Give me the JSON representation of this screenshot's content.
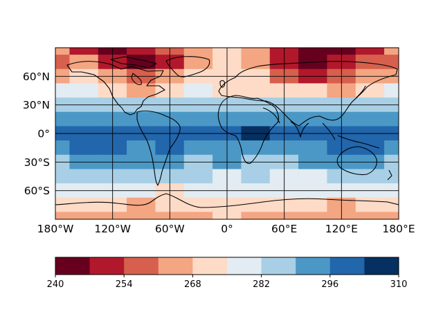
{
  "chart_data": {
    "type": "heatmap",
    "title": "",
    "projection": "PlateCarree",
    "coastlines": true,
    "grid": true,
    "xlim": [
      -180,
      180
    ],
    "ylim": [
      -90,
      90
    ],
    "xticks": [
      {
        "value": -180,
        "label": "180°W"
      },
      {
        "value": -120,
        "label": "120°W"
      },
      {
        "value": -60,
        "label": "60°W"
      },
      {
        "value": 0,
        "label": "0°"
      },
      {
        "value": 60,
        "label": "60°E"
      },
      {
        "value": 120,
        "label": "120°E"
      },
      {
        "value": 180,
        "label": "180°E"
      }
    ],
    "yticks": [
      {
        "value": 60,
        "label": "60°N"
      },
      {
        "value": 30,
        "label": "30°N"
      },
      {
        "value": 0,
        "label": "0°"
      },
      {
        "value": -30,
        "label": "30°S"
      },
      {
        "value": -60,
        "label": "60°S"
      }
    ],
    "colorbar": {
      "orientation": "horizontal",
      "levels": [
        240,
        247,
        254,
        261,
        268,
        275,
        282,
        289,
        296,
        303,
        310
      ],
      "tick_values": [
        240,
        254,
        268,
        282,
        296,
        310
      ],
      "tick_labels": [
        "240",
        "254",
        "268",
        "282",
        "296",
        "310"
      ],
      "colors": [
        "#67001f",
        "#b2182b",
        "#d6604d",
        "#f4a582",
        "#fddbc7",
        "#e2ecf2",
        "#a8cfe5",
        "#4b98c6",
        "#2266ac",
        "#053061"
      ]
    },
    "grid_lons": [
      -180,
      -150,
      -120,
      -90,
      -60,
      -30,
      0,
      30,
      60,
      90,
      120,
      150,
      180
    ],
    "grid_lats": [
      90,
      75,
      60,
      45,
      30,
      15,
      0,
      -15,
      -30,
      -45,
      -60,
      -75,
      -90
    ],
    "values": [
      [
        262,
        250,
        243,
        248,
        258,
        264,
        268,
        265,
        252,
        242,
        243,
        248,
        262
      ],
      [
        256,
        262,
        250,
        245,
        252,
        262,
        270,
        262,
        248,
        243,
        247,
        255,
        256
      ],
      [
        264,
        268,
        262,
        256,
        264,
        268,
        270,
        268,
        260,
        253,
        256,
        262,
        264
      ],
      [
        276,
        276,
        272,
        266,
        272,
        276,
        273,
        274,
        270,
        268,
        266,
        270,
        276
      ],
      [
        284,
        283,
        284,
        284,
        283,
        282,
        285,
        284,
        282,
        286,
        283,
        284,
        284
      ],
      [
        292,
        293,
        292,
        292,
        292,
        292,
        294,
        294,
        293,
        294,
        294,
        293,
        292
      ],
      [
        296,
        297,
        296,
        296,
        297,
        296,
        297,
        303,
        297,
        297,
        298,
        297,
        296
      ],
      [
        295,
        297,
        296,
        295,
        297,
        294,
        293,
        295,
        294,
        295,
        298,
        296,
        295
      ],
      [
        288,
        292,
        289,
        289,
        291,
        288,
        290,
        287,
        288,
        289,
        292,
        289,
        288
      ],
      [
        282,
        283,
        284,
        282,
        282,
        282,
        281,
        282,
        281,
        280,
        283,
        283,
        282
      ],
      [
        276,
        276,
        275,
        276,
        274,
        276,
        276,
        276,
        276,
        275,
        276,
        276,
        276
      ],
      [
        270,
        270,
        268,
        265,
        270,
        268,
        270,
        270,
        268,
        270,
        266,
        270,
        270
      ],
      [
        266,
        266,
        264,
        266,
        262,
        266,
        268,
        266,
        264,
        266,
        264,
        266,
        266
      ]
    ]
  }
}
